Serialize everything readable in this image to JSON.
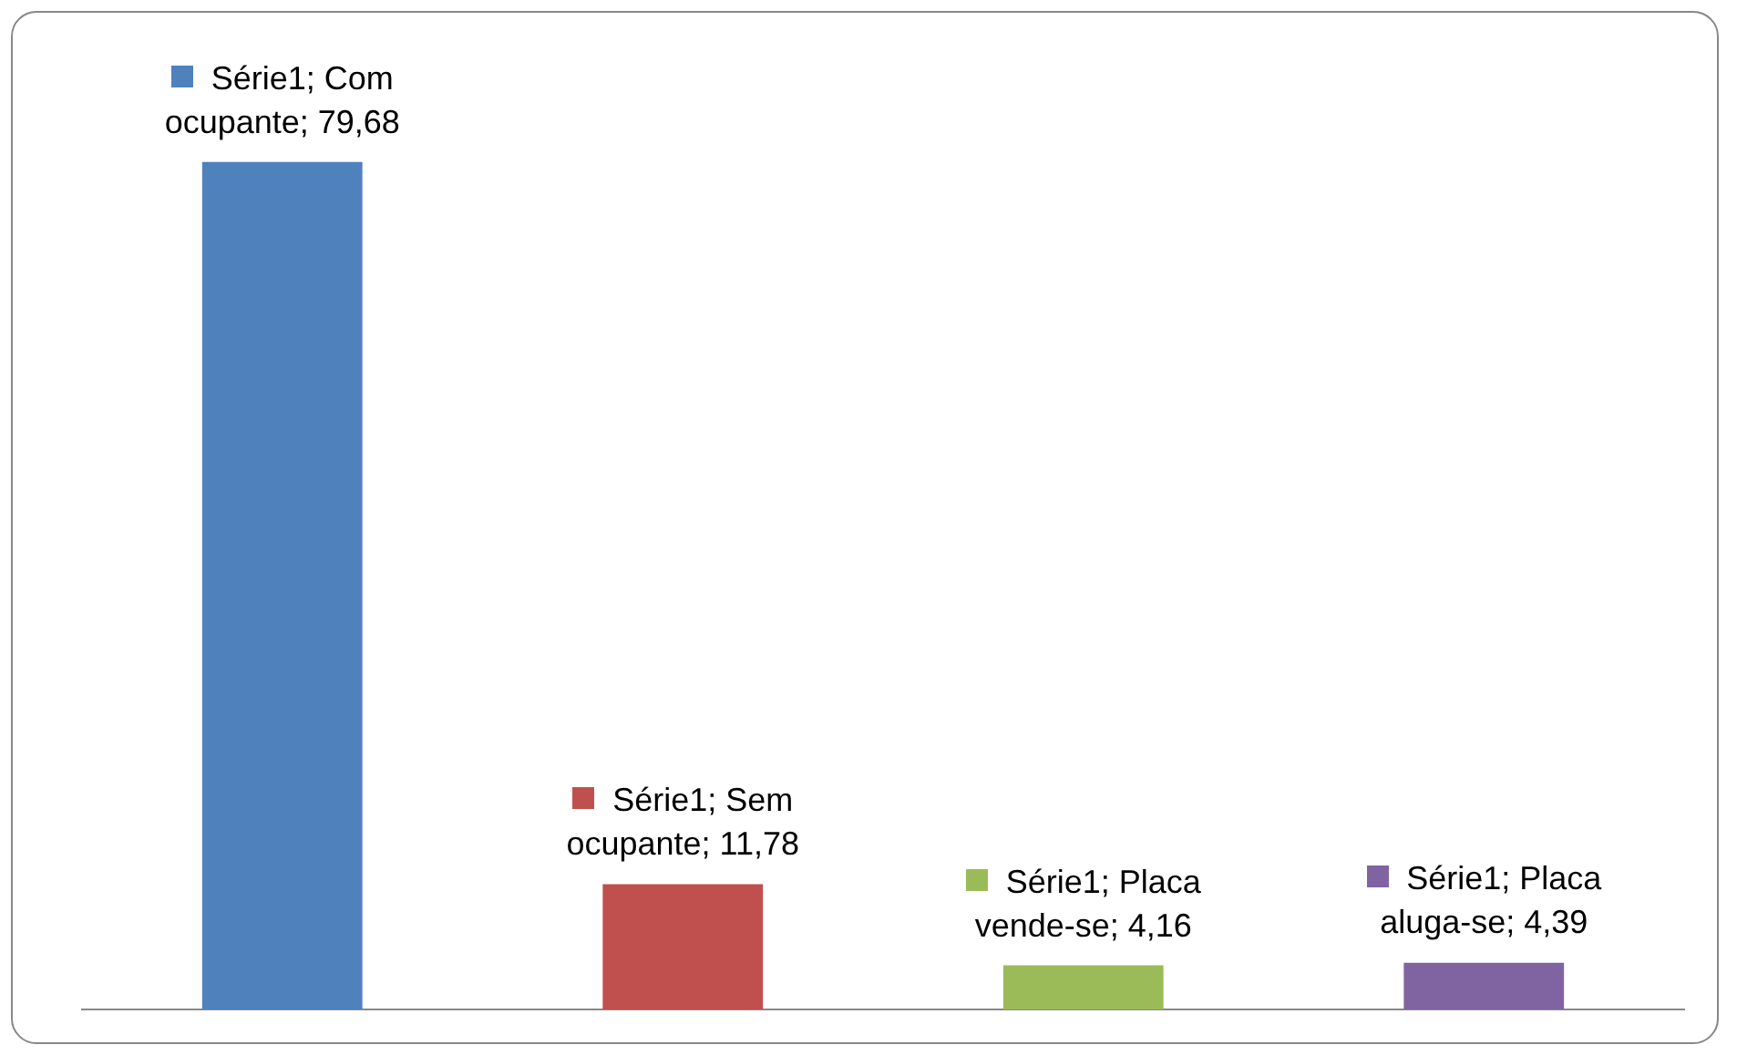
{
  "chart_data": {
    "type": "bar",
    "categories": [
      null,
      null,
      null,
      null
    ],
    "series": [
      {
        "colors": [
          "#4f81bd",
          "#c0504d",
          "#9bbb59",
          "#8064a2"
        ],
        "values": [
          79.68,
          11.78,
          4.16,
          4.39
        ],
        "value_labels": [
          "Série1; Com ocupante; 79,68",
          "Série1; Sem ocupante; 11,78",
          "Série1; Placa vende-se; 4,16",
          "Série1; Placa aluga-se; 4,39"
        ]
      }
    ],
    "tick_labels": false
  }
}
